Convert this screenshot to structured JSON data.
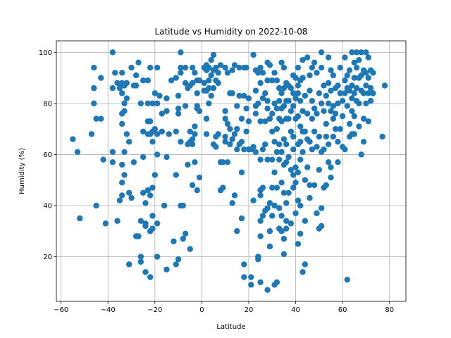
{
  "chart_data": {
    "type": "scatter",
    "title": "Latitude vs Humidity on 2022-10-08",
    "xlabel": "Latitude",
    "ylabel": "Humidity (%)",
    "xlim": [
      -62,
      87
    ],
    "ylim": [
      2.5,
      104.5
    ],
    "xticks": [
      "−60",
      "−40",
      "−20",
      "0",
      "20",
      "40",
      "60",
      "80"
    ],
    "xtick_values": [
      -60,
      -40,
      -20,
      0,
      20,
      40,
      60,
      80
    ],
    "yticks": [
      "20",
      "40",
      "60",
      "80",
      "100"
    ],
    "ytick_values": [
      20,
      40,
      60,
      80,
      100
    ],
    "grid": true,
    "marker_color": "#1f77b4",
    "points": [
      [
        -55,
        66
      ],
      [
        -53,
        61
      ],
      [
        -52,
        35
      ],
      [
        -47,
        68
      ],
      [
        -46,
        86
      ],
      [
        -46,
        94
      ],
      [
        -46,
        80
      ],
      [
        -45,
        74
      ],
      [
        -45,
        40
      ],
      [
        -43,
        90
      ],
      [
        -43,
        74
      ],
      [
        -42,
        58
      ],
      [
        -41,
        33
      ],
      [
        -38,
        86
      ],
      [
        -38,
        100
      ],
      [
        -38,
        61
      ],
      [
        -38,
        57
      ],
      [
        -37,
        92
      ],
      [
        -36,
        88
      ],
      [
        -36,
        34
      ],
      [
        -35,
        86
      ],
      [
        -35,
        42
      ],
      [
        -34,
        92
      ],
      [
        -34,
        88
      ],
      [
        -34,
        84
      ],
      [
        -34,
        76
      ],
      [
        -34,
        72
      ],
      [
        -34,
        56
      ],
      [
        -34,
        49
      ],
      [
        -34,
        44
      ],
      [
        -33,
        87
      ],
      [
        -33,
        80
      ],
      [
        -33,
        77
      ],
      [
        -33,
        61
      ],
      [
        -33,
        52
      ],
      [
        -32,
        88
      ],
      [
        -32,
        82
      ],
      [
        -32,
        68
      ],
      [
        -31,
        65
      ],
      [
        -31,
        45
      ],
      [
        -31,
        17
      ],
      [
        -30,
        94
      ],
      [
        -30,
        43
      ],
      [
        -29,
        87
      ],
      [
        -29,
        57
      ],
      [
        -28,
        91
      ],
      [
        -28,
        87
      ],
      [
        -28,
        28
      ],
      [
        -27,
        96
      ],
      [
        -27,
        28
      ],
      [
        -26,
        80
      ],
      [
        -26,
        34
      ],
      [
        -26,
        20
      ],
      [
        -26,
        18
      ],
      [
        -25,
        89
      ],
      [
        -25,
        69
      ],
      [
        -25,
        59
      ],
      [
        -25,
        45
      ],
      [
        -24,
        32
      ],
      [
        -24,
        41
      ],
      [
        -24,
        33
      ],
      [
        -24,
        14
      ],
      [
        -23,
        89
      ],
      [
        -23,
        80
      ],
      [
        -23,
        73
      ],
      [
        -23,
        68
      ],
      [
        -23,
        46
      ],
      [
        -22,
        94
      ],
      [
        -22,
        73
      ],
      [
        -22,
        68
      ],
      [
        -22,
        44
      ],
      [
        -22,
        30
      ],
      [
        -22,
        12
      ],
      [
        -21,
        80
      ],
      [
        -21,
        69
      ],
      [
        -21,
        65
      ],
      [
        -21,
        47
      ],
      [
        -21,
        36
      ],
      [
        -21,
        31
      ],
      [
        -20,
        84
      ],
      [
        -20,
        70
      ],
      [
        -20,
        52
      ],
      [
        -19,
        94
      ],
      [
        -19,
        80
      ],
      [
        -19,
        68
      ],
      [
        -19,
        60
      ],
      [
        -19,
        33
      ],
      [
        -19,
        20
      ],
      [
        -18,
        83
      ],
      [
        -17,
        76
      ],
      [
        -17,
        69
      ],
      [
        -16,
        40
      ],
      [
        -15,
        82
      ],
      [
        -15,
        77
      ],
      [
        -15,
        59
      ],
      [
        -15,
        15
      ],
      [
        -14,
        68
      ],
      [
        -13,
        89
      ],
      [
        -12,
        26
      ],
      [
        -11,
        90
      ],
      [
        -11,
        69
      ],
      [
        -11,
        52
      ],
      [
        -11,
        17
      ],
      [
        -10,
        83
      ],
      [
        -10,
        78
      ],
      [
        -10,
        76
      ],
      [
        -10,
        19
      ],
      [
        -9,
        100
      ],
      [
        -9,
        94
      ],
      [
        -9,
        92
      ],
      [
        -9,
        65
      ],
      [
        -9,
        40
      ],
      [
        -8,
        27
      ],
      [
        -8,
        40
      ],
      [
        -7,
        94
      ],
      [
        -7,
        88
      ],
      [
        -7,
        79
      ],
      [
        -7,
        29
      ],
      [
        -6,
        56
      ],
      [
        -6,
        86
      ],
      [
        -6,
        64
      ],
      [
        -5,
        87
      ],
      [
        -5,
        69
      ],
      [
        -5,
        65
      ],
      [
        -5,
        23
      ],
      [
        -4,
        94
      ],
      [
        -4,
        88
      ],
      [
        -4,
        66
      ],
      [
        -4,
        64
      ],
      [
        -4,
        48
      ],
      [
        -3,
        92
      ],
      [
        -3,
        71
      ],
      [
        -3,
        57
      ],
      [
        -3,
        68
      ],
      [
        -2,
        89
      ],
      [
        -2,
        84
      ],
      [
        -2,
        79
      ],
      [
        -2,
        78
      ],
      [
        -2,
        46
      ],
      [
        -1,
        89
      ],
      [
        -1,
        77
      ],
      [
        -1,
        51
      ],
      [
        1,
        94
      ],
      [
        1,
        88
      ],
      [
        1,
        85
      ],
      [
        2,
        95
      ],
      [
        2,
        93
      ],
      [
        2,
        85
      ],
      [
        2,
        74
      ],
      [
        2,
        68
      ],
      [
        3,
        94
      ],
      [
        3,
        89
      ],
      [
        3,
        86
      ],
      [
        3,
        80
      ],
      [
        4,
        97
      ],
      [
        4,
        91
      ],
      [
        4,
        83
      ],
      [
        5,
        99
      ],
      [
        5,
        93
      ],
      [
        5,
        86
      ],
      [
        5,
        64
      ],
      [
        6,
        94
      ],
      [
        6,
        89
      ],
      [
        6,
        63
      ],
      [
        6,
        67
      ],
      [
        7,
        92
      ],
      [
        7,
        88
      ],
      [
        7,
        68
      ],
      [
        8,
        95
      ],
      [
        8,
        46
      ],
      [
        8,
        57
      ],
      [
        9,
        57
      ],
      [
        9,
        47
      ],
      [
        10,
        94
      ],
      [
        10,
        77
      ],
      [
        10,
        74
      ],
      [
        10,
        67
      ],
      [
        10,
        65
      ],
      [
        11,
        92
      ],
      [
        11,
        72
      ],
      [
        11,
        57
      ],
      [
        12,
        84
      ],
      [
        12,
        70
      ],
      [
        12,
        64
      ],
      [
        13,
        41
      ],
      [
        13,
        66
      ],
      [
        13,
        84
      ],
      [
        13,
        93
      ],
      [
        14,
        95
      ],
      [
        14,
        44
      ],
      [
        14,
        68
      ],
      [
        15,
        30
      ],
      [
        15,
        62
      ],
      [
        15,
        70
      ],
      [
        15,
        79
      ],
      [
        16,
        94
      ],
      [
        16,
        83
      ],
      [
        16,
        64
      ],
      [
        17,
        65
      ],
      [
        17,
        74
      ],
      [
        17,
        35
      ],
      [
        17,
        53
      ],
      [
        18,
        94
      ],
      [
        18,
        83
      ],
      [
        18,
        62
      ],
      [
        18,
        17
      ],
      [
        18,
        12
      ],
      [
        19,
        94
      ],
      [
        19,
        78
      ],
      [
        19,
        69
      ],
      [
        20,
        82
      ],
      [
        20,
        73
      ],
      [
        20,
        62
      ],
      [
        21,
        62
      ],
      [
        21,
        12
      ],
      [
        21,
        9
      ],
      [
        22,
        99
      ],
      [
        22,
        63
      ],
      [
        22,
        42
      ],
      [
        23,
        93
      ],
      [
        23,
        85
      ],
      [
        23,
        79
      ],
      [
        23,
        76
      ],
      [
        23,
        61
      ],
      [
        24,
        80
      ],
      [
        24,
        92
      ],
      [
        24,
        20
      ],
      [
        24,
        19
      ],
      [
        25,
        94
      ],
      [
        25,
        88
      ],
      [
        25,
        73
      ],
      [
        25,
        58
      ],
      [
        25,
        46
      ],
      [
        25,
        44
      ],
      [
        25,
        34
      ],
      [
        25,
        28
      ],
      [
        25,
        10
      ],
      [
        26,
        92
      ],
      [
        26,
        82
      ],
      [
        26,
        62
      ],
      [
        26,
        47
      ],
      [
        26,
        36
      ],
      [
        27,
        84
      ],
      [
        27,
        73
      ],
      [
        27,
        64
      ],
      [
        27,
        38
      ],
      [
        28,
        96
      ],
      [
        28,
        89
      ],
      [
        28,
        81
      ],
      [
        28,
        78
      ],
      [
        28,
        58
      ],
      [
        28,
        39
      ],
      [
        28,
        7
      ],
      [
        29,
        95
      ],
      [
        29,
        74
      ],
      [
        29,
        41
      ],
      [
        29,
        30
      ],
      [
        29,
        24
      ],
      [
        30,
        89
      ],
      [
        30,
        76
      ],
      [
        30,
        69
      ],
      [
        30,
        58
      ],
      [
        30,
        47
      ],
      [
        30,
        36
      ],
      [
        31,
        92
      ],
      [
        31,
        80
      ],
      [
        31,
        65
      ],
      [
        31,
        53
      ],
      [
        31,
        40
      ],
      [
        31,
        9
      ],
      [
        32,
        89
      ],
      [
        32,
        78
      ],
      [
        32,
        70
      ],
      [
        32,
        61
      ],
      [
        32,
        47
      ],
      [
        32,
        10
      ],
      [
        33,
        86
      ],
      [
        33,
        81
      ],
      [
        33,
        74
      ],
      [
        33,
        64
      ],
      [
        33,
        58
      ],
      [
        33,
        39
      ],
      [
        33,
        31
      ],
      [
        34,
        96
      ],
      [
        34,
        84
      ],
      [
        34,
        78
      ],
      [
        34,
        73
      ],
      [
        34,
        61
      ],
      [
        34,
        49
      ],
      [
        34,
        36
      ],
      [
        34,
        30
      ],
      [
        35,
        94
      ],
      [
        35,
        86
      ],
      [
        35,
        79
      ],
      [
        35,
        66
      ],
      [
        35,
        56
      ],
      [
        35,
        45
      ],
      [
        35,
        27
      ],
      [
        35,
        21
      ],
      [
        36,
        88
      ],
      [
        36,
        81
      ],
      [
        36,
        74
      ],
      [
        36,
        64
      ],
      [
        36,
        57
      ],
      [
        36,
        41
      ],
      [
        36,
        34
      ],
      [
        36,
        31
      ],
      [
        37,
        87
      ],
      [
        37,
        81
      ],
      [
        37,
        74
      ],
      [
        37,
        59
      ],
      [
        37,
        45
      ],
      [
        38,
        86
      ],
      [
        38,
        77
      ],
      [
        38,
        69
      ],
      [
        38,
        54
      ],
      [
        38,
        33
      ],
      [
        39,
        91
      ],
      [
        39,
        84
      ],
      [
        39,
        79
      ],
      [
        39,
        67
      ],
      [
        39,
        62
      ],
      [
        39,
        52
      ],
      [
        39,
        47
      ],
      [
        40,
        90
      ],
      [
        40,
        82
      ],
      [
        40,
        74
      ],
      [
        40,
        55
      ],
      [
        40,
        49
      ],
      [
        40,
        37
      ],
      [
        41,
        94
      ],
      [
        41,
        87
      ],
      [
        41,
        84
      ],
      [
        41,
        75
      ],
      [
        41,
        64
      ],
      [
        41,
        53
      ],
      [
        41,
        42
      ],
      [
        41,
        25
      ],
      [
        42,
        89
      ],
      [
        42,
        81
      ],
      [
        42,
        71
      ],
      [
        42,
        65
      ],
      [
        42,
        58
      ],
      [
        42,
        40
      ],
      [
        42,
        29
      ],
      [
        43,
        97
      ],
      [
        43,
        90
      ],
      [
        43,
        77
      ],
      [
        43,
        69
      ],
      [
        43,
        61
      ],
      [
        43,
        14
      ],
      [
        44,
        83
      ],
      [
        44,
        69
      ],
      [
        44,
        50
      ],
      [
        44,
        34
      ],
      [
        44,
        17
      ],
      [
        45,
        98
      ],
      [
        45,
        76
      ],
      [
        45,
        66
      ],
      [
        45,
        55
      ],
      [
        46,
        91
      ],
      [
        46,
        85
      ],
      [
        46,
        65
      ],
      [
        46,
        48
      ],
      [
        46,
        43
      ],
      [
        47,
        94
      ],
      [
        47,
        81
      ],
      [
        47,
        74
      ],
      [
        47,
        62
      ],
      [
        48,
        96
      ],
      [
        48,
        78
      ],
      [
        48,
        69
      ],
      [
        48,
        48
      ],
      [
        49,
        92
      ],
      [
        49,
        76
      ],
      [
        49,
        63
      ],
      [
        49,
        37
      ],
      [
        50,
        84
      ],
      [
        50,
        67
      ],
      [
        50,
        54
      ],
      [
        50,
        31
      ],
      [
        51,
        100
      ],
      [
        51,
        94
      ],
      [
        51,
        80
      ],
      [
        51,
        61
      ],
      [
        51,
        39
      ],
      [
        51,
        32
      ],
      [
        52,
        87
      ],
      [
        52,
        77
      ],
      [
        52,
        62
      ],
      [
        52,
        47
      ],
      [
        53,
        83
      ],
      [
        53,
        72
      ],
      [
        53,
        67
      ],
      [
        53,
        48
      ],
      [
        54,
        98
      ],
      [
        54,
        88
      ],
      [
        54,
        80
      ],
      [
        54,
        64
      ],
      [
        54,
        57
      ],
      [
        55,
        93
      ],
      [
        55,
        85
      ],
      [
        55,
        77
      ],
      [
        55,
        55
      ],
      [
        55,
        51
      ],
      [
        56,
        91
      ],
      [
        56,
        79
      ],
      [
        56,
        74
      ],
      [
        56,
        67
      ],
      [
        57,
        86
      ],
      [
        57,
        76
      ],
      [
        57,
        70
      ],
      [
        58,
        87
      ],
      [
        58,
        80
      ],
      [
        58,
        65
      ],
      [
        58,
        57
      ],
      [
        59,
        94
      ],
      [
        59,
        84
      ],
      [
        59,
        70
      ],
      [
        60,
        81
      ],
      [
        60,
        75
      ],
      [
        60,
        63
      ],
      [
        61,
        98
      ],
      [
        61,
        89
      ],
      [
        61,
        84
      ],
      [
        61,
        62
      ],
      [
        62,
        11
      ],
      [
        62,
        91
      ],
      [
        62,
        86
      ],
      [
        62,
        79
      ],
      [
        63,
        93
      ],
      [
        63,
        85
      ],
      [
        63,
        72
      ],
      [
        63,
        67
      ],
      [
        64,
        100
      ],
      [
        64,
        87
      ],
      [
        64,
        82
      ],
      [
        64,
        77
      ],
      [
        64,
        68
      ],
      [
        65,
        96
      ],
      [
        65,
        90
      ],
      [
        65,
        84
      ],
      [
        65,
        75
      ],
      [
        65,
        68
      ],
      [
        66,
        100
      ],
      [
        66,
        94
      ],
      [
        66,
        86
      ],
      [
        66,
        81
      ],
      [
        67,
        97
      ],
      [
        67,
        90
      ],
      [
        67,
        80
      ],
      [
        67,
        71
      ],
      [
        68,
        100
      ],
      [
        68,
        91
      ],
      [
        68,
        85
      ],
      [
        68,
        60
      ],
      [
        69,
        93
      ],
      [
        69,
        84
      ],
      [
        69,
        74
      ],
      [
        69,
        65
      ],
      [
        70,
        100
      ],
      [
        70,
        92
      ],
      [
        70,
        87
      ],
      [
        70,
        80
      ],
      [
        71,
        98
      ],
      [
        71,
        90
      ],
      [
        71,
        84
      ],
      [
        71,
        73
      ],
      [
        72,
        93
      ],
      [
        72,
        86
      ],
      [
        72,
        81
      ],
      [
        73,
        92
      ],
      [
        73,
        84
      ],
      [
        77,
        67
      ],
      [
        78,
        87
      ]
    ]
  }
}
